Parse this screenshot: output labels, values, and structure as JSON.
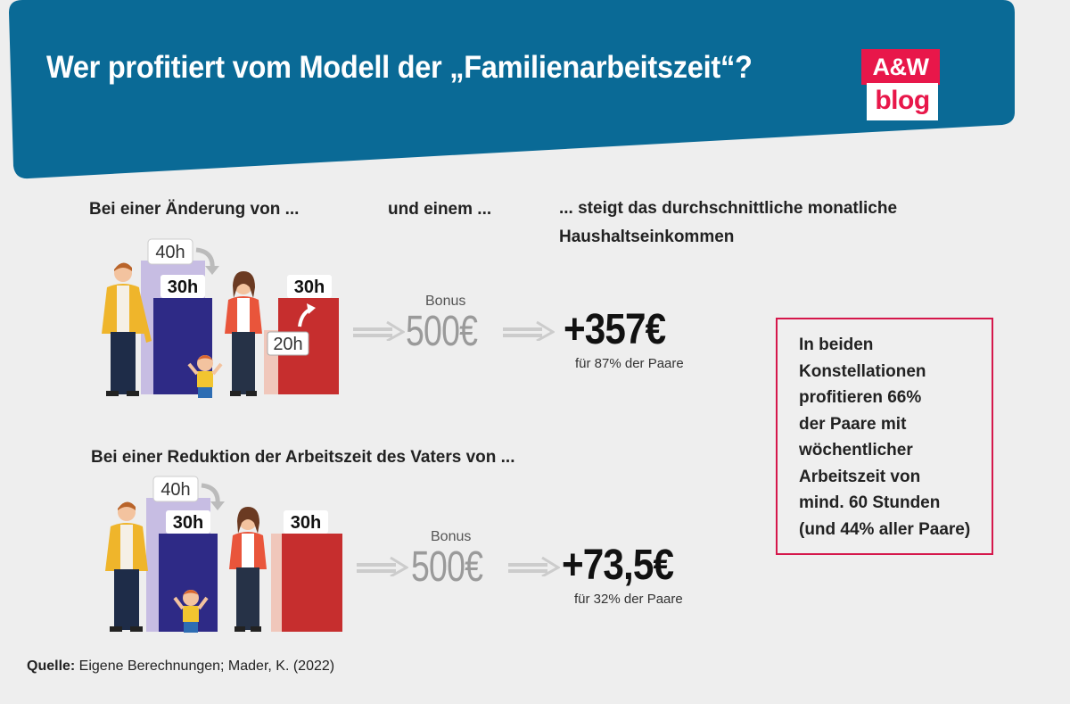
{
  "header": {
    "title": "Wer profitiert vom Modell der „Familienarbeitszeit“?",
    "bg_color": "#0a6a96",
    "logo": {
      "top": "A&W",
      "bottom": "blog",
      "color": "#e8174a"
    }
  },
  "section1": {
    "col1_heading": "Bei einer Änderung von ...",
    "col2_heading": "und einem ...",
    "col3_heading": "... steigt das durchschnittliche monatliche Haushaltseinkommen",
    "father": {
      "before": "40h",
      "after": "30h"
    },
    "mother": {
      "before": "20h",
      "after": "30h"
    },
    "bonus_label": "Bonus",
    "bonus_value": "500€",
    "result_value": "+357€",
    "result_note": "für 87% der Paare"
  },
  "section2": {
    "heading": "Bei einer Reduktion der Arbeitszeit des Vaters von ...",
    "father": {
      "before": "40h",
      "after": "30h"
    },
    "mother": {
      "after": "30h"
    },
    "bonus_label": "Bonus",
    "bonus_value": "500€",
    "result_value": "+73,5€",
    "result_note": "für 32% der Paare"
  },
  "infobox": {
    "lines": [
      "In beiden",
      "Konstellationen",
      "profitieren 66%",
      "der Paare mit",
      "wöchentlicher",
      "Arbeitszeit von",
      "mind. 60 Stunden",
      "(und 44% aller Paare)"
    ],
    "border_color": "#d5174b"
  },
  "source": {
    "label": "Quelle:",
    "text": " Eigene Berechnungen; Mader, K. (2022)"
  },
  "colors": {
    "father_before": "#c7bde3",
    "father_after": "#2e2a86",
    "mother_before": "#f0c7bb",
    "mother_after": "#c62e2e",
    "father_jacket": "#efb52b",
    "mother_cardigan": "#e9553b"
  }
}
